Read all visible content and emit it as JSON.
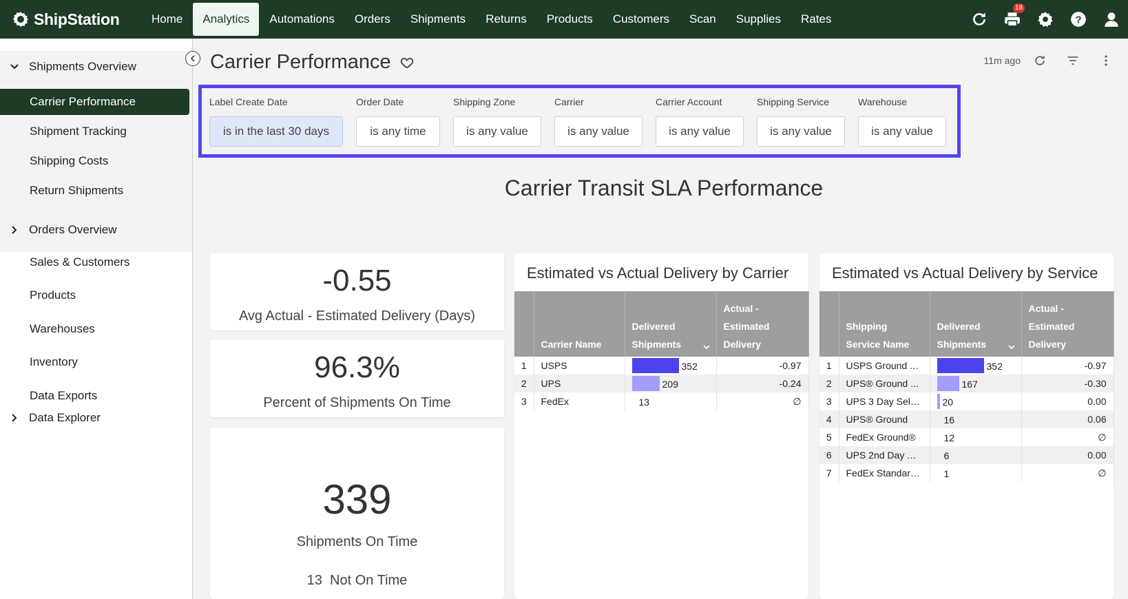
{
  "brand": "ShipStation",
  "nav": [
    "Home",
    "Analytics",
    "Automations",
    "Orders",
    "Shipments",
    "Returns",
    "Products",
    "Customers",
    "Scan",
    "Supplies",
    "Rates"
  ],
  "nav_active": "Analytics",
  "print_badge": "18",
  "sidebar": {
    "group1": "Shipments Overview",
    "sub": [
      "Carrier Performance",
      "Shipment Tracking",
      "Shipping Costs",
      "Return Shipments"
    ],
    "items": [
      "Orders Overview",
      "Sales & Customers",
      "Products",
      "Warehouses",
      "Inventory",
      "Data Exports",
      "Data Explorer"
    ]
  },
  "page_title": "Carrier Performance",
  "updated": "11m ago",
  "filters": [
    {
      "label": "Label Create Date",
      "value": "is in the last 30 days"
    },
    {
      "label": "Order Date",
      "value": "is any time"
    },
    {
      "label": "Shipping Zone",
      "value": "is any value"
    },
    {
      "label": "Carrier",
      "value": "is any value"
    },
    {
      "label": "Carrier Account",
      "value": "is any value"
    },
    {
      "label": "Shipping Service",
      "value": "is any value"
    },
    {
      "label": "Warehouse",
      "value": "is any value"
    }
  ],
  "dashboard_title": "Carrier Transit SLA Performance",
  "kpis": [
    {
      "value": "-0.55",
      "label": "Avg Actual - Estimated Delivery (Days)"
    },
    {
      "value": "96.3%",
      "label": "Percent of Shipments On Time"
    },
    {
      "value": "339",
      "label": "Shipments On Time",
      "sub_value": "13",
      "sub_label": "Not On Time"
    }
  ],
  "carrier_table": {
    "title": "Estimated vs Actual Delivery by Carrier",
    "headers": [
      "Carrier Name",
      "Delivered Shipments",
      "Actual - Estimated Delivery"
    ],
    "rows": [
      {
        "idx": "1",
        "name": "USPS",
        "delivered": 352,
        "diff": "-0.97"
      },
      {
        "idx": "2",
        "name": "UPS",
        "delivered": 209,
        "diff": "-0.24"
      },
      {
        "idx": "3",
        "name": "FedEx",
        "delivered": 13,
        "diff": "∅"
      }
    ]
  },
  "service_table": {
    "title": "Estimated vs Actual Delivery by Service",
    "headers": [
      "Shipping Service Name",
      "Delivered Shipments",
      "Actual - Estimated Delivery"
    ],
    "rows": [
      {
        "idx": "1",
        "name": "USPS Ground A...",
        "delivered": 352,
        "diff": "-0.97"
      },
      {
        "idx": "2",
        "name": "UPS® Ground ...",
        "delivered": 167,
        "diff": "-0.30"
      },
      {
        "idx": "3",
        "name": "UPS 3 Day Sele...",
        "delivered": 20,
        "diff": "0.00"
      },
      {
        "idx": "4",
        "name": "UPS® Ground",
        "delivered": 16,
        "diff": "0.06"
      },
      {
        "idx": "5",
        "name": "FedEx Ground®",
        "delivered": 12,
        "diff": "∅"
      },
      {
        "idx": "6",
        "name": "UPS 2nd Day Ai...",
        "delivered": 6,
        "diff": "0.00"
      },
      {
        "idx": "7",
        "name": "FedEx Standard...",
        "delivered": 1,
        "diff": "∅"
      }
    ]
  },
  "colors": {
    "nav_bg": "#1d3b25",
    "bar_primary": "#4b43ee",
    "bar_secondary": "#a29dfb",
    "highlight_border": "#5145ee"
  }
}
